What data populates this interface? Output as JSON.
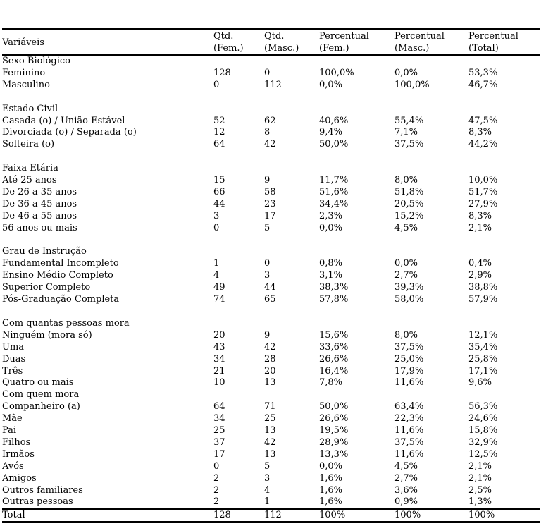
{
  "page": {
    "background": "#ffffff",
    "text_color": "#000000",
    "rule_color": "#000000"
  },
  "table": {
    "columns": [
      {
        "line1": "Variáveis",
        "line2": ""
      },
      {
        "line1": "Qtd.",
        "line2": "(Fem.)"
      },
      {
        "line1": "Qtd.",
        "line2": "(Masc.)"
      },
      {
        "line1": "Percentual",
        "line2": "(Fem.)"
      },
      {
        "line1": "Percentual",
        "line2": "(Masc.)"
      },
      {
        "line1": "Percentual",
        "line2": "(Total)"
      }
    ],
    "sections": [
      {
        "label": "Sexo Biológico",
        "gap_before": false,
        "rows": [
          {
            "label": "Feminino",
            "values": [
              "128",
              "0",
              "100,0%",
              "0,0%",
              "53,3%"
            ]
          },
          {
            "label": "Masculino",
            "values": [
              "0",
              "112",
              "0,0%",
              "100,0%",
              "46,7%"
            ]
          }
        ]
      },
      {
        "label": "Estado Civil",
        "gap_before": true,
        "rows": [
          {
            "label": "Casada (o) / União Estável",
            "values": [
              "52",
              "62",
              "40,6%",
              "55,4%",
              "47,5%"
            ]
          },
          {
            "label": "Divorciada (o) / Separada (o)",
            "values": [
              "12",
              "8",
              "9,4%",
              "7,1%",
              "8,3%"
            ]
          },
          {
            "label": "Solteira (o)",
            "values": [
              "64",
              "42",
              "50,0%",
              "37,5%",
              "44,2%"
            ]
          }
        ]
      },
      {
        "label": "Faixa Etária",
        "gap_before": true,
        "rows": [
          {
            "label": "Até 25 anos",
            "values": [
              "15",
              "9",
              "11,7%",
              "8,0%",
              "10,0%"
            ]
          },
          {
            "label": "De 26 a 35 anos",
            "values": [
              "66",
              "58",
              "51,6%",
              "51,8%",
              "51,7%"
            ]
          },
          {
            "label": "De 36 a 45 anos",
            "values": [
              "44",
              "23",
              "34,4%",
              "20,5%",
              "27,9%"
            ]
          },
          {
            "label": "De 46 a 55 anos",
            "values": [
              "3",
              "17",
              "2,3%",
              "15,2%",
              "8,3%"
            ]
          },
          {
            "label": "56 anos ou mais",
            "values": [
              "0",
              "5",
              "0,0%",
              "4,5%",
              "2,1%"
            ]
          }
        ]
      },
      {
        "label": "Grau de Instrução",
        "gap_before": true,
        "rows": [
          {
            "label": "Fundamental Incompleto",
            "values": [
              "1",
              "0",
              "0,8%",
              "0,0%",
              "0,4%"
            ]
          },
          {
            "label": "Ensino Médio Completo",
            "values": [
              "4",
              "3",
              "3,1%",
              "2,7%",
              "2,9%"
            ]
          },
          {
            "label": "Superior Completo",
            "values": [
              "49",
              "44",
              "38,3%",
              "39,3%",
              "38,8%"
            ]
          },
          {
            "label": "Pós-Graduação Completa",
            "values": [
              "74",
              "65",
              "57,8%",
              "58,0%",
              "57,9%"
            ]
          }
        ]
      },
      {
        "label": "Com quantas pessoas mora",
        "gap_before": true,
        "rows": [
          {
            "label": "Ninguém (mora só)",
            "values": [
              "20",
              "9",
              "15,6%",
              "8,0%",
              "12,1%"
            ]
          },
          {
            "label": "Uma",
            "values": [
              "43",
              "42",
              "33,6%",
              "37,5%",
              "35,4%"
            ]
          },
          {
            "label": "Duas",
            "values": [
              "34",
              "28",
              "26,6%",
              "25,0%",
              "25,8%"
            ]
          },
          {
            "label": "Três",
            "values": [
              "21",
              "20",
              "16,4%",
              "17,9%",
              "17,1%"
            ]
          },
          {
            "label": "Quatro ou mais",
            "values": [
              "10",
              "13",
              "7,8%",
              "11,6%",
              "9,6%"
            ]
          }
        ]
      },
      {
        "label": "Com quem mora",
        "gap_before": false,
        "rows": [
          {
            "label": "Companheiro (a)",
            "values": [
              "64",
              "71",
              "50,0%",
              "63,4%",
              "56,3%"
            ]
          },
          {
            "label": "Mãe",
            "values": [
              "34",
              "25",
              "26,6%",
              "22,3%",
              "24,6%"
            ]
          },
          {
            "label": "Pai",
            "values": [
              "25",
              "13",
              "19,5%",
              "11,6%",
              "15,8%"
            ]
          },
          {
            "label": "Filhos",
            "values": [
              "37",
              "42",
              "28,9%",
              "37,5%",
              "32,9%"
            ]
          },
          {
            "label": "Irmãos",
            "values": [
              "17",
              "13",
              "13,3%",
              "11,6%",
              "12,5%"
            ]
          },
          {
            "label": "Avós",
            "values": [
              "0",
              "5",
              "0,0%",
              "4,5%",
              "2,1%"
            ]
          },
          {
            "label": "Amigos",
            "values": [
              "2",
              "3",
              "1,6%",
              "2,7%",
              "2,1%"
            ]
          },
          {
            "label": "Outros familiares",
            "values": [
              "2",
              "4",
              "1,6%",
              "3,6%",
              "2,5%"
            ]
          },
          {
            "label": "Outras pessoas",
            "values": [
              "2",
              "1",
              "1,6%",
              "0,9%",
              "1,3%"
            ]
          }
        ]
      }
    ],
    "total": {
      "label": "Total",
      "values": [
        "128",
        "112",
        "100%",
        "100%",
        "100%"
      ]
    }
  }
}
